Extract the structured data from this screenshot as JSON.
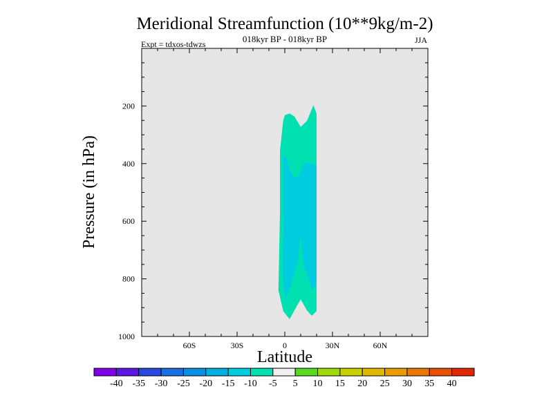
{
  "chart_data": {
    "type": "contour",
    "title": "Meridional Streamfunction (10**9kg/m-2)",
    "subtitle": "018kyr BP - 018kyr BP",
    "left_label": "Expt = tdxos-tdwzs",
    "season": "JJA",
    "xlabel": "Latitude",
    "ylabel": "Pressure (in hPa)",
    "x_range": [
      -90,
      90
    ],
    "y_range": [
      0,
      1000
    ],
    "y_inverted": true,
    "x_ticks": [
      {
        "value": -60,
        "label": "60S"
      },
      {
        "value": -30,
        "label": "30S"
      },
      {
        "value": 0,
        "label": "0"
      },
      {
        "value": 30,
        "label": "30N"
      },
      {
        "value": 60,
        "label": "60N"
      }
    ],
    "y_ticks": [
      {
        "value": 200,
        "label": "200"
      },
      {
        "value": 400,
        "label": "400"
      },
      {
        "value": 600,
        "label": "600"
      },
      {
        "value": 800,
        "label": "800"
      },
      {
        "value": 1000,
        "label": "1000"
      }
    ],
    "background_color": "#e6e6e6",
    "contour_regions": [
      {
        "level": "-10 to -5",
        "color": "#00e0b0",
        "polygon": [
          [
            0,
            232
          ],
          [
            3,
            226
          ],
          [
            6,
            236
          ],
          [
            10,
            273
          ],
          [
            14,
            251
          ],
          [
            18,
            197
          ],
          [
            20,
            227
          ],
          [
            20,
            385
          ],
          [
            20,
            912
          ],
          [
            17,
            928
          ],
          [
            14,
            910
          ],
          [
            10,
            871
          ],
          [
            7,
            900
          ],
          [
            3,
            940
          ],
          [
            -1,
            912
          ],
          [
            -4,
            840
          ],
          [
            -3,
            560
          ],
          [
            -3,
            355
          ],
          [
            -1,
            250
          ]
        ]
      },
      {
        "level": "-15 to -10",
        "color": "#00cce0",
        "polygon": [
          [
            -1,
            372
          ],
          [
            1,
            380
          ],
          [
            3,
            420
          ],
          [
            6,
            450
          ],
          [
            9,
            440
          ],
          [
            12,
            397
          ],
          [
            15,
            398
          ],
          [
            20,
            405
          ],
          [
            20,
            820
          ],
          [
            17,
            840
          ],
          [
            14,
            780
          ],
          [
            12,
            760
          ],
          [
            10,
            650
          ],
          [
            8,
            745
          ],
          [
            6,
            780
          ],
          [
            3,
            837
          ],
          [
            0,
            872
          ],
          [
            -1,
            800
          ],
          [
            -1,
            560
          ]
        ]
      }
    ],
    "colorbar": {
      "labels": [
        "-40",
        "-35",
        "-30",
        "-25",
        "-20",
        "-15",
        "-10",
        "-5",
        "5",
        "10",
        "15",
        "20",
        "25",
        "30",
        "35",
        "40"
      ],
      "colors": [
        "#8000e8",
        "#5c18e0",
        "#2848e0",
        "#1870e0",
        "#0890e0",
        "#00b0e0",
        "#00cce0",
        "#00e0b0",
        "#f0f0f0",
        "#58d820",
        "#a0d810",
        "#c8d000",
        "#e0b800",
        "#e89c00",
        "#e87800",
        "#e85000",
        "#e02800"
      ]
    }
  }
}
